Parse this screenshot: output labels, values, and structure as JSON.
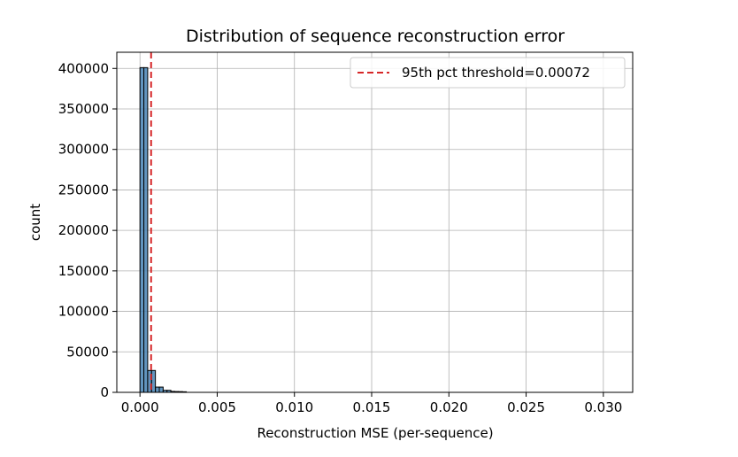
{
  "chart_data": {
    "type": "bar",
    "title": "Distribution of sequence reconstruction error",
    "xlabel": "Reconstruction MSE (per-sequence)",
    "ylabel": "count",
    "xlim": [
      -0.0015,
      0.0319
    ],
    "ylim": [
      0,
      420000
    ],
    "x_ticks": [
      0.0,
      0.005,
      0.01,
      0.015,
      0.02,
      0.025,
      0.03
    ],
    "x_tick_labels": [
      "0.000",
      "0.005",
      "0.010",
      "0.015",
      "0.020",
      "0.025",
      "0.030"
    ],
    "y_ticks": [
      0,
      50000,
      100000,
      150000,
      200000,
      250000,
      300000,
      350000,
      400000
    ],
    "y_tick_labels": [
      "0",
      "50000",
      "100000",
      "150000",
      "200000",
      "250000",
      "300000",
      "350000",
      "400000"
    ],
    "grid": true,
    "legend_position": "top-right",
    "bar_color": "#4682b4",
    "bar_edge_color": "#000000",
    "bins": [
      {
        "x0": 0.0,
        "x1": 0.00025,
        "count": 401000
      },
      {
        "x0": 0.00025,
        "x1": 0.0005,
        "count": 401000
      },
      {
        "x0": 0.0005,
        "x1": 0.00075,
        "count": 27000
      },
      {
        "x0": 0.00075,
        "x1": 0.001,
        "count": 27000
      },
      {
        "x0": 0.001,
        "x1": 0.00125,
        "count": 6500
      },
      {
        "x0": 0.00125,
        "x1": 0.0015,
        "count": 6500
      },
      {
        "x0": 0.0015,
        "x1": 0.00175,
        "count": 2500
      },
      {
        "x0": 0.00175,
        "x1": 0.002,
        "count": 2500
      },
      {
        "x0": 0.002,
        "x1": 0.00225,
        "count": 1200
      },
      {
        "x0": 0.00225,
        "x1": 0.0025,
        "count": 1000
      },
      {
        "x0": 0.0025,
        "x1": 0.00275,
        "count": 900
      },
      {
        "x0": 0.00275,
        "x1": 0.003,
        "count": 700
      }
    ],
    "threshold": {
      "value": 0.00072,
      "label": "95th pct threshold=0.00072",
      "color": "#d62728",
      "style": "dashed"
    }
  }
}
